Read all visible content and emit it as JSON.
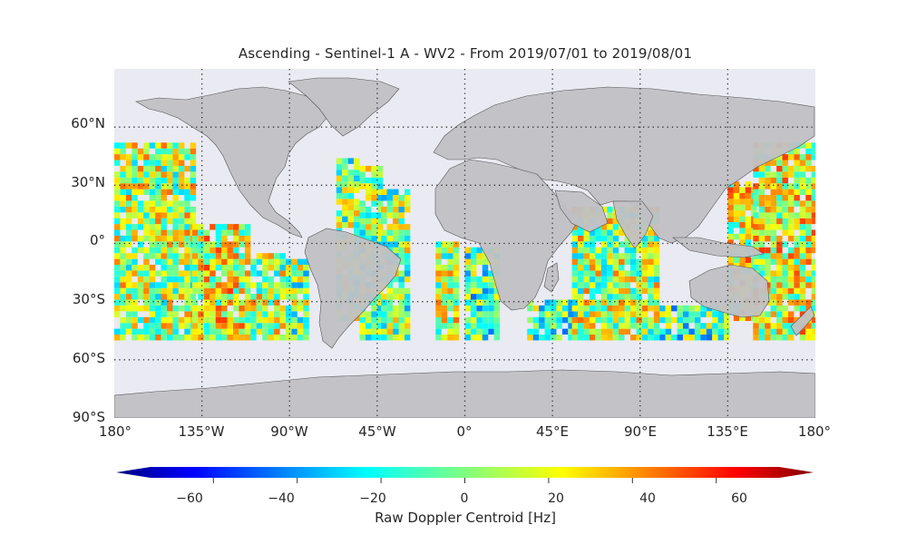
{
  "title": "Ascending - Sentinel-1 A - WV2 - From 2019/07/01 to 2019/08/01",
  "map": {
    "projection": "equirectangular",
    "background_color": "#eaeaf2",
    "land_color": "#c0c0c4",
    "grid_style": "dotted",
    "lat_labels": [
      "60°N",
      "30°N",
      "0°",
      "30°S",
      "60°S",
      "90°S"
    ],
    "lon_labels": [
      "180°",
      "135°W",
      "90°W",
      "45°W",
      "0°",
      "45°E",
      "90°E",
      "135°E",
      "180°"
    ],
    "data_lat_range": [
      -50,
      50
    ]
  },
  "colorbar": {
    "colormap": "jet",
    "range": [
      -75,
      75
    ],
    "extend": "both",
    "tick_values": [
      -60,
      -40,
      -20,
      0,
      20,
      40,
      60
    ],
    "tick_labels": [
      "−60",
      "−40",
      "−20",
      "0",
      "20",
      "40",
      "60"
    ],
    "label": "Raw Doppler Centroid [Hz]"
  }
}
